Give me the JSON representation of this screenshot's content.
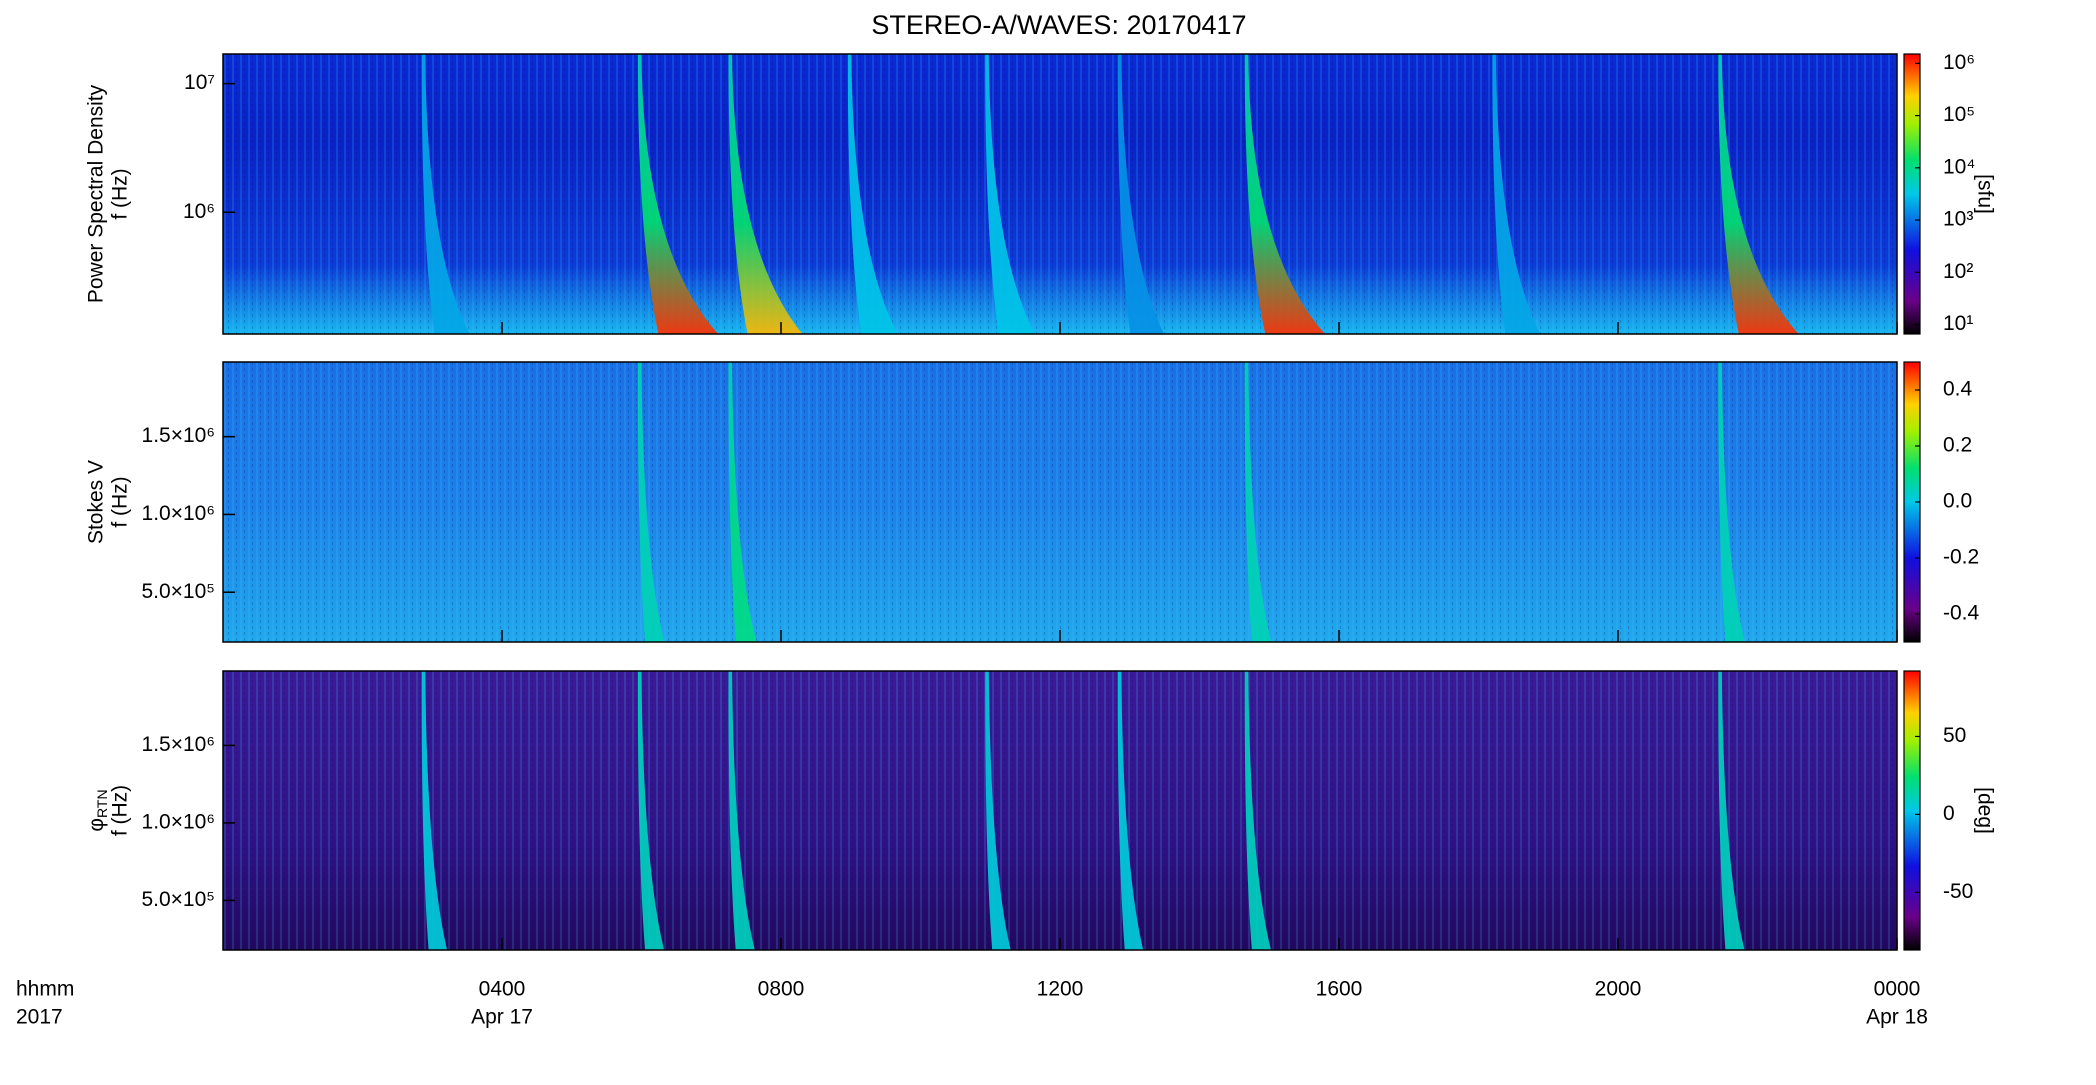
{
  "chart_data": [
    {
      "type": "heatmap",
      "title": "STEREO-A/WAVES: 20170417",
      "ylabel": "Power Spectral Density",
      "ylabel2": "f (Hz)",
      "xlim": [
        0,
        24
      ],
      "ylim": [
        113000,
        17000000
      ],
      "ylog": true,
      "yticks": [
        {
          "value": 1000000,
          "label": "10⁶"
        },
        {
          "value": 10000000,
          "label": "10⁷"
        }
      ],
      "clim": [
        6.6,
        1510000
      ],
      "clog": true,
      "cticks": [
        {
          "value": 10,
          "label": "10¹"
        },
        {
          "value": 100,
          "label": "10²"
        },
        {
          "value": 1000,
          "label": "10³"
        },
        {
          "value": 10000,
          "label": "10⁴"
        },
        {
          "value": 100000,
          "label": "10⁵"
        },
        {
          "value": 1000000,
          "label": "10⁶"
        }
      ],
      "clabel": "[sfu]",
      "bursts": {
        "x": [
          2.87,
          5.97,
          7.27,
          8.98,
          10.95,
          12.85,
          14.67,
          18.22,
          21.46
        ],
        "values": [
          2000,
          1000000,
          300000,
          3000,
          3000,
          1500,
          1000000,
          2000,
          1000000
        ]
      }
    },
    {
      "type": "heatmap",
      "ylabel": "Stokes V",
      "ylabel2": "f (Hz)",
      "xlim": [
        0,
        24
      ],
      "ylim": [
        180000,
        1980000
      ],
      "yticks": [
        {
          "value": 500000,
          "label": "5.0×10⁵"
        },
        {
          "value": 1000000,
          "label": "1.0×10⁶"
        },
        {
          "value": 1500000,
          "label": "1.5×10⁶"
        }
      ],
      "clim": [
        -0.5,
        0.5
      ],
      "cticks": [
        {
          "value": -0.4,
          "label": "-0.4"
        },
        {
          "value": -0.2,
          "label": "-0.2"
        },
        {
          "value": 0,
          "label": "0.0"
        },
        {
          "value": 0.2,
          "label": "0.2"
        },
        {
          "value": 0.4,
          "label": "0.4"
        }
      ],
      "bursts": {
        "x": [
          5.97,
          7.27,
          14.67,
          21.46
        ],
        "values": [
          0.05,
          0.1,
          0.05,
          0.05
        ]
      }
    },
    {
      "type": "heatmap",
      "ylabel_symbol": "φ",
      "ylabel_subscript": "RTN",
      "ylabel2": "f (Hz)",
      "xlim": [
        0,
        24
      ],
      "ylim": [
        180000,
        1980000
      ],
      "yticks": [
        {
          "value": 500000,
          "label": "5.0×10⁵"
        },
        {
          "value": 1000000,
          "label": "1.0×10⁶"
        },
        {
          "value": 1500000,
          "label": "1.5×10⁶"
        }
      ],
      "clim": [
        -87,
        92
      ],
      "cticks": [
        -50,
        0,
        50
      ],
      "clabel": "[deg]",
      "xlabel": "hhmm",
      "xlabel2": "2017",
      "xticks": [
        {
          "value": 4,
          "label": "0400"
        },
        {
          "value": 8,
          "label": "0800"
        },
        {
          "value": 12,
          "label": "1200"
        },
        {
          "value": 16,
          "label": "1600"
        },
        {
          "value": 20,
          "label": "2000"
        },
        {
          "value": 24,
          "label": "0000"
        }
      ],
      "date_labels": [
        {
          "value": 4,
          "label": "Apr 17"
        },
        {
          "value": 24,
          "label": "Apr 18"
        }
      ],
      "bursts": {
        "x": [
          2.87,
          5.97,
          7.27,
          10.95,
          12.85,
          14.67,
          21.46
        ],
        "values": [
          5,
          10,
          10,
          5,
          5,
          10,
          10
        ]
      }
    }
  ]
}
